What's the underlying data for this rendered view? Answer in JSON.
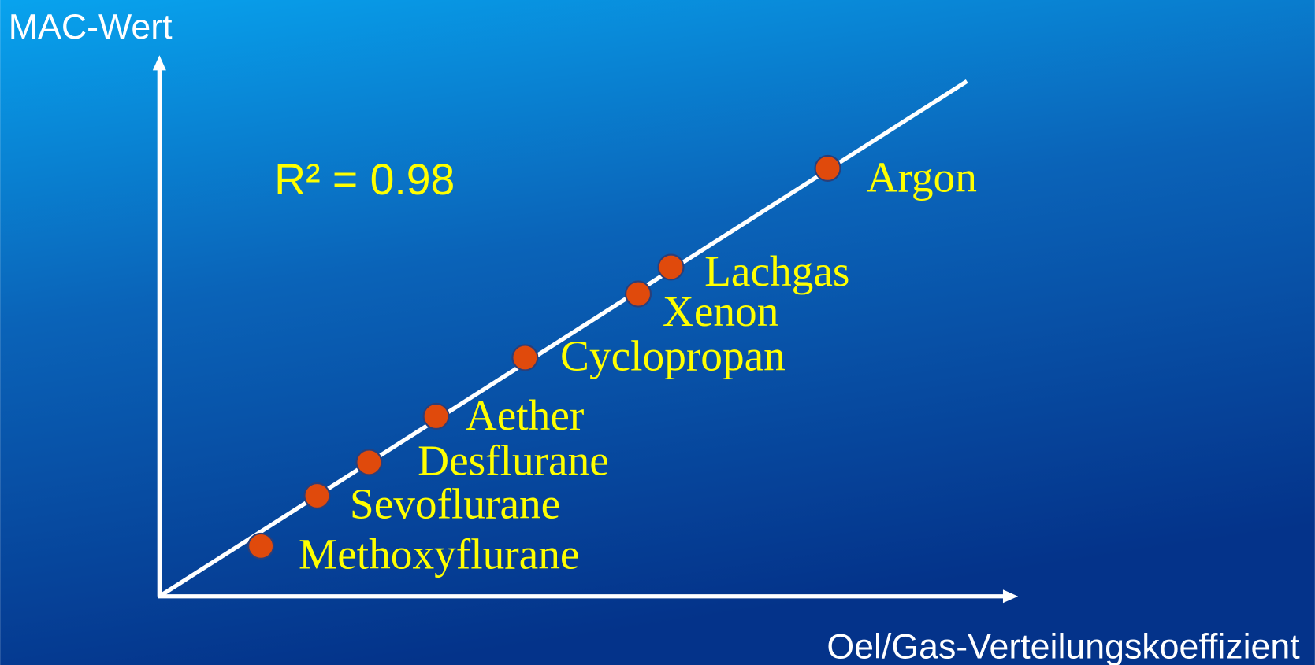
{
  "chart": {
    "y_axis_label": "MAC-Wert",
    "x_axis_label": "Oel/Gas-Verteilungskoeffizient",
    "annotation": "R² = 0.98",
    "points": [
      {
        "label": "Methoxyflurane"
      },
      {
        "label": "Sevoflurane"
      },
      {
        "label": "Desflurane"
      },
      {
        "label": "Aether"
      },
      {
        "label": "Cyclopropan"
      },
      {
        "label": "Xenon"
      },
      {
        "label": "Lachgas"
      },
      {
        "label": "Argon"
      }
    ]
  }
}
